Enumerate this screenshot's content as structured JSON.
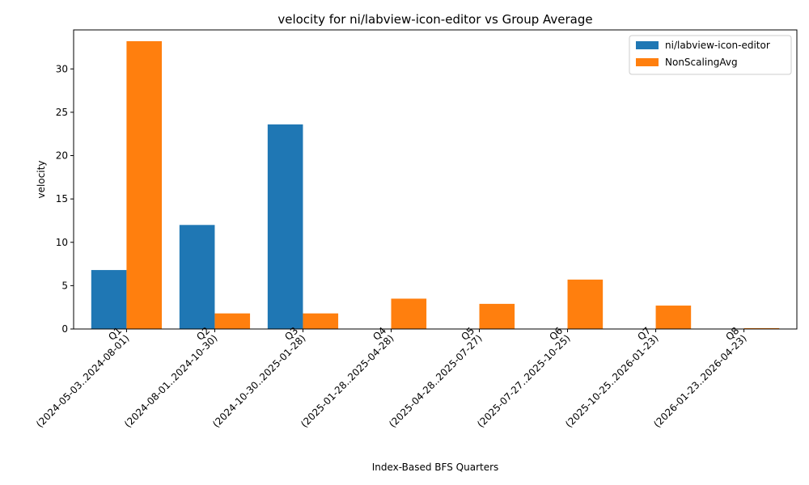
{
  "chart_data": {
    "type": "bar",
    "title": "velocity for ni/labview-icon-editor vs Group Average",
    "xlabel": "Index-Based BFS Quarters",
    "ylabel": "velocity",
    "categories": [
      {
        "quarter": "Q1",
        "range": "(2024-05-03..2024-08-01)"
      },
      {
        "quarter": "Q2",
        "range": "(2024-08-01..2024-10-30)"
      },
      {
        "quarter": "Q3",
        "range": "(2024-10-30..2025-01-28)"
      },
      {
        "quarter": "Q4",
        "range": "(2025-01-28..2025-04-28)"
      },
      {
        "quarter": "Q5",
        "range": "(2025-04-28..2025-07-27)"
      },
      {
        "quarter": "Q6",
        "range": "(2025-07-27..2025-10-25)"
      },
      {
        "quarter": "Q7",
        "range": "(2025-10-25..2026-01-23)"
      },
      {
        "quarter": "Q8",
        "range": "(2026-01-23..2026-04-23)"
      }
    ],
    "series": [
      {
        "name": "ni/labview-icon-editor",
        "color": "#1f77b4",
        "values": [
          6.8,
          12.0,
          23.6,
          0,
          0,
          0,
          0,
          0
        ]
      },
      {
        "name": "NonScalingAvg",
        "color": "#ff7f0e",
        "values": [
          33.2,
          1.8,
          1.8,
          3.5,
          2.9,
          5.7,
          2.7,
          0.1
        ]
      }
    ],
    "ylim": [
      0,
      34.5
    ],
    "yticks": [
      0,
      5,
      10,
      15,
      20,
      25,
      30
    ],
    "grid": false,
    "legend": "top-right"
  }
}
